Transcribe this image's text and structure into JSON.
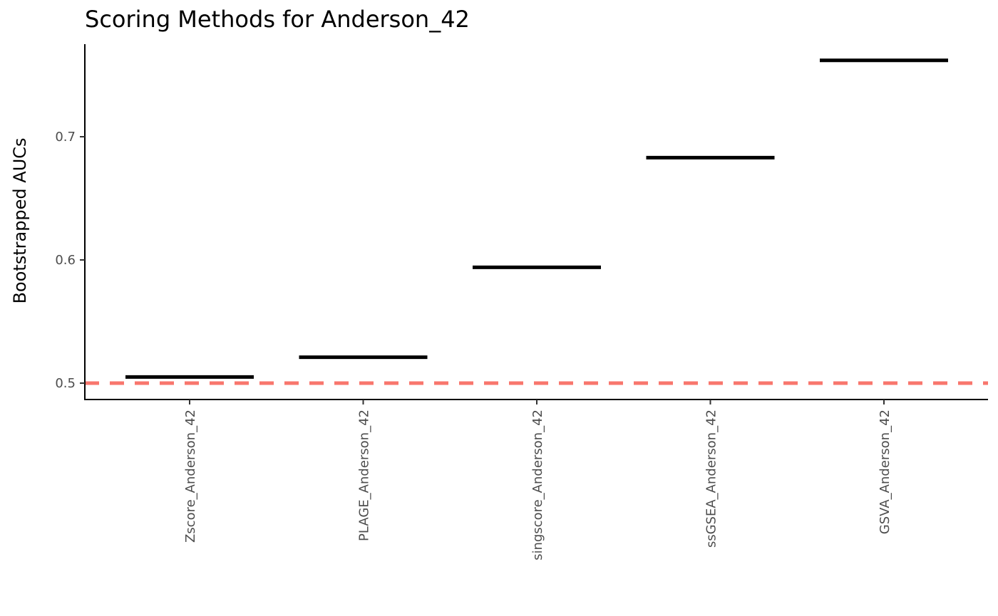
{
  "chart_data": {
    "type": "errorbar",
    "title": "Scoring Methods for Anderson_42",
    "xlabel": "",
    "ylabel": "Bootstrapped AUCs",
    "categories": [
      "Zscore_Anderson_42",
      "PLAGE_Anderson_42",
      "singscore_Anderson_42",
      "ssGSEA_Anderson_42",
      "GSVA_Anderson_42"
    ],
    "values": [
      0.505,
      0.521,
      0.594,
      0.683,
      0.762
    ],
    "yticks": [
      0.5,
      0.6,
      0.7
    ],
    "ytick_labels": [
      "0.5",
      "0.6",
      "0.7"
    ],
    "ylim": [
      0.487,
      0.775
    ],
    "reference_line": {
      "y": 0.5,
      "style": "dashed",
      "color": "#F8766D"
    },
    "mark_color": "#000000",
    "grid": false,
    "legend": "none"
  }
}
